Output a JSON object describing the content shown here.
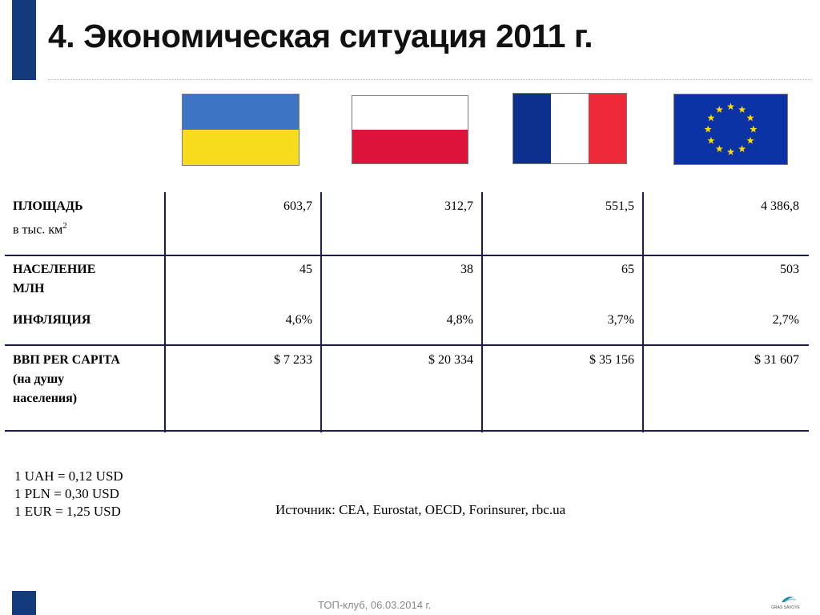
{
  "title": "4. Экономическая ситуация 2011 г.",
  "flags": [
    "ukraine-flag",
    "poland-flag",
    "france-flag",
    "eu-flag"
  ],
  "colors": {
    "accent": "#123a7d",
    "ukraine_blue": "#3e74c4",
    "ukraine_yellow": "#f6dc1c",
    "poland_red": "#dc143c",
    "france_blue": "#0d2f8e",
    "france_red": "#ee2a3a",
    "eu_blue": "#0b33a6",
    "eu_star": "#ffdd00"
  },
  "table": {
    "rows": [
      {
        "label_lines": [
          "ПЛОЩАДЬ",
          "в тыс. км"
        ],
        "unit_superscript": "2",
        "values": [
          "603,7",
          "312,7",
          "551,5",
          "4 386,8"
        ]
      },
      {
        "label_lines": [
          "НАСЕЛЕНИЕ",
          "МЛН"
        ],
        "values": [
          "45",
          "38",
          "65",
          "503"
        ]
      },
      {
        "label_lines": [
          "ИНФЛЯЦИЯ"
        ],
        "values": [
          "4,6%",
          "4,8%",
          "3,7%",
          "2,7%"
        ]
      },
      {
        "label_lines": [
          "ВВП PER CAPITA",
          "(на душу",
          "населения)"
        ],
        "values": [
          "$ 7 233",
          "$ 20 334",
          "$ 35 156",
          "$ 31 607"
        ]
      }
    ]
  },
  "exchange_rates": [
    "1 UAH = 0,12 USD",
    "1 PLN = 0,30 USD",
    "1 EUR = 1,25 USD"
  ],
  "source": "Источник: CEA, Eurostat, OECD, Forinsurer, rbc.ua",
  "footer": "ТОП-клуб, 06.03.2014 г.",
  "logo_text": "GRAS SAVOYE"
}
